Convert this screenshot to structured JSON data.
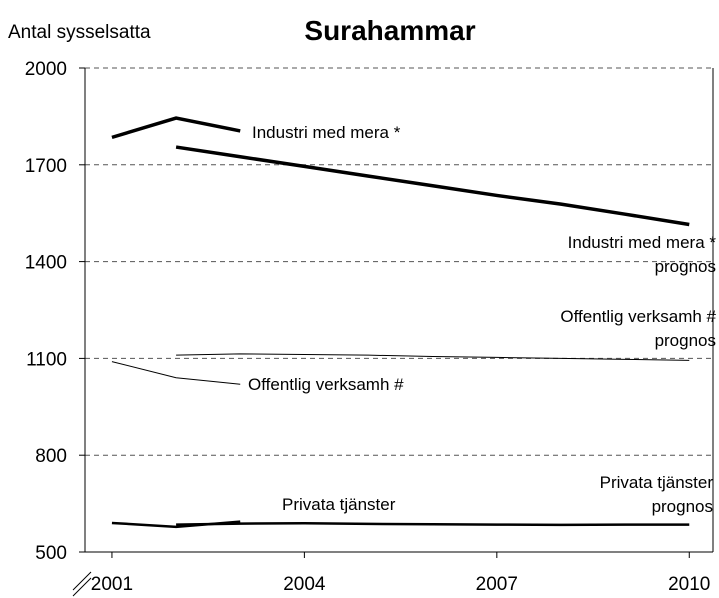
{
  "chart_data": {
    "type": "line",
    "title": "Surahammar",
    "y_label": "Antal sysselsatta",
    "xlim": [
      2000.58,
      2010.37
    ],
    "xticks": [
      2001,
      2004,
      2007,
      2010
    ],
    "ylim": [
      500,
      2000
    ],
    "yticks": [
      500,
      800,
      1100,
      1400,
      1700,
      2000
    ],
    "grid": true,
    "axis_break": true,
    "series": [
      {
        "name": "Industri med mera *",
        "color": "#000000",
        "line_width": 3.5,
        "x": [
          2001,
          2002,
          2003
        ],
        "values": [
          1785,
          1845,
          1805
        ]
      },
      {
        "name": "Industri med mera * prognos",
        "color": "#000000",
        "line_width": 3.5,
        "x": [
          2002,
          2003,
          2004,
          2005,
          2006,
          2007,
          2008,
          2009,
          2010
        ],
        "values": [
          1755,
          1725,
          1695,
          1665,
          1635,
          1605,
          1578,
          1547,
          1515
        ]
      },
      {
        "name": "Offentlig verksamh #",
        "color": "#000000",
        "line_width": 1,
        "x": [
          2001,
          2002,
          2003
        ],
        "values": [
          1090,
          1040,
          1020
        ]
      },
      {
        "name": "Offentlig verksamh # prognos",
        "color": "#000000",
        "line_width": 1,
        "x": [
          2002,
          2003,
          2004,
          2005,
          2006,
          2007,
          2008,
          2009,
          2010
        ],
        "values": [
          1110,
          1114,
          1112,
          1110,
          1106,
          1103,
          1100,
          1097,
          1094
        ]
      },
      {
        "name": "Privata tjänster",
        "color": "#000000",
        "line_width": 2.5,
        "x": [
          2001,
          2002,
          2003
        ],
        "values": [
          590,
          578,
          594
        ]
      },
      {
        "name": "Privata tjänster prognos",
        "color": "#000000",
        "line_width": 2.5,
        "x": [
          2002,
          2003,
          2004,
          2005,
          2006,
          2007,
          2008,
          2009,
          2010
        ],
        "values": [
          585,
          588,
          589,
          587,
          586,
          585,
          584,
          585,
          585
        ]
      }
    ]
  }
}
